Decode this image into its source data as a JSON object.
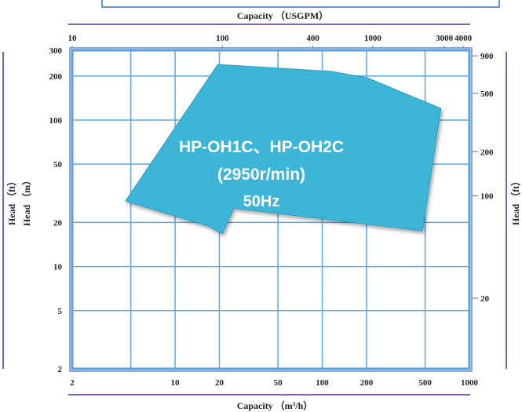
{
  "chart_data": {
    "type": "area",
    "x_bottom": {
      "label": "Capacity （m³/h）",
      "scale": "log",
      "range": [
        2,
        1000
      ],
      "ticks": [
        2,
        10,
        20,
        50,
        100,
        200,
        500,
        1000
      ],
      "tick_labels": [
        "2",
        "10",
        "20",
        "50",
        "100",
        "200",
        "500",
        "1000"
      ]
    },
    "x_top": {
      "label": "Capacity （USGPM）",
      "scale": "log",
      "range": [
        10,
        4400
      ],
      "ticks": [
        10,
        100,
        400,
        1000,
        3000,
        4000
      ],
      "tick_labels": [
        "10",
        "100",
        "400",
        "1000",
        "3000",
        "4000"
      ]
    },
    "y_left": {
      "label_outer": "Head （ft）",
      "label_inner": "Head （m）",
      "scale": "log",
      "range": [
        2,
        300
      ],
      "ticks": [
        2,
        5,
        10,
        20,
        50,
        100,
        200,
        300
      ],
      "tick_labels": [
        "2",
        "5",
        "10",
        "20",
        "50",
        "100",
        "200",
        "300"
      ]
    },
    "y_right": {
      "label": "Head （ft）",
      "scale": "log",
      "range": [
        6.6,
        984
      ],
      "ticks": [
        20,
        100,
        200,
        500,
        900
      ],
      "tick_labels": [
        "20",
        "100",
        "200",
        "500",
        "900"
      ]
    },
    "grid": true,
    "grid_x": [
      2,
      5,
      10,
      20,
      50,
      100,
      200,
      500,
      1000
    ],
    "grid_y": [
      2,
      5,
      10,
      20,
      50,
      100,
      200,
      300
    ],
    "region": {
      "label_lines": [
        "HP-OH1C、HP-OH2C",
        "(2950r/min)",
        "50Hz"
      ],
      "color": "#3cb5d6",
      "points": [
        {
          "capacity_m3h": 19.5,
          "head_m": 240
        },
        {
          "capacity_m3h": 115,
          "head_m": 215
        },
        {
          "capacity_m3h": 200,
          "head_m": 195
        },
        {
          "capacity_m3h": 640,
          "head_m": 120
        },
        {
          "capacity_m3h": 480,
          "head_m": 17.5
        },
        {
          "capacity_m3h": 25,
          "head_m": 25
        },
        {
          "capacity_m3h": 21,
          "head_m": 16.8
        },
        {
          "capacity_m3h": 16.5,
          "head_m": 19
        },
        {
          "capacity_m3h": 4.6,
          "head_m": 28
        }
      ]
    }
  },
  "colors": {
    "axis": "#5b8fd6",
    "grid": "#5ba8e6",
    "frame": "#ffffff",
    "bracket": "#8a5fb0",
    "header_box": "#3a6fb5"
  }
}
